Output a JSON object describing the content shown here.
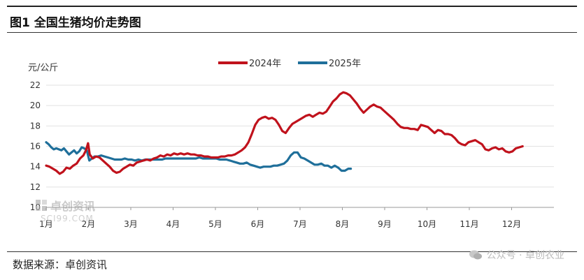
{
  "header": {
    "title": "图1 全国生猪均价走势图"
  },
  "footer": {
    "source": "数据来源：卓创资讯",
    "wechat": "公众号 · 卓创农业"
  },
  "watermark": {
    "brand": "卓创资讯",
    "sub": "SCI99.COM"
  },
  "chart_data": {
    "type": "line",
    "ylabel": "元/公斤",
    "ylim": [
      10,
      22
    ],
    "yticks": [
      10,
      12,
      14,
      16,
      18,
      20,
      22
    ],
    "xlim": [
      0,
      12
    ],
    "xticks": [
      "1月",
      "2月",
      "3月",
      "4月",
      "5月",
      "6月",
      "7月",
      "8月",
      "9月",
      "10月",
      "11月",
      "12月"
    ],
    "legend_position": "top-center",
    "colors": {
      "2024": "#c0121c",
      "2025": "#1f6f9a"
    },
    "series": [
      {
        "name": "2024年",
        "color": "#c0121c",
        "points": [
          [
            0.0,
            14.1
          ],
          [
            0.08,
            14.0
          ],
          [
            0.16,
            13.8
          ],
          [
            0.24,
            13.6
          ],
          [
            0.32,
            13.3
          ],
          [
            0.4,
            13.5
          ],
          [
            0.48,
            13.9
          ],
          [
            0.56,
            13.8
          ],
          [
            0.64,
            14.1
          ],
          [
            0.72,
            14.3
          ],
          [
            0.8,
            14.8
          ],
          [
            0.88,
            15.1
          ],
          [
            0.94,
            15.6
          ],
          [
            0.99,
            16.3
          ],
          [
            1.03,
            15.2
          ],
          [
            1.1,
            14.8
          ],
          [
            1.18,
            15.0
          ],
          [
            1.26,
            14.9
          ],
          [
            1.34,
            14.6
          ],
          [
            1.42,
            14.3
          ],
          [
            1.5,
            14.0
          ],
          [
            1.58,
            13.6
          ],
          [
            1.66,
            13.4
          ],
          [
            1.74,
            13.5
          ],
          [
            1.82,
            13.8
          ],
          [
            1.9,
            14.0
          ],
          [
            1.98,
            14.2
          ],
          [
            2.06,
            14.1
          ],
          [
            2.14,
            14.4
          ],
          [
            2.22,
            14.5
          ],
          [
            2.3,
            14.6
          ],
          [
            2.38,
            14.7
          ],
          [
            2.46,
            14.6
          ],
          [
            2.54,
            14.8
          ],
          [
            2.62,
            14.9
          ],
          [
            2.7,
            15.1
          ],
          [
            2.78,
            15.0
          ],
          [
            2.86,
            15.2
          ],
          [
            2.94,
            15.1
          ],
          [
            3.02,
            15.3
          ],
          [
            3.1,
            15.2
          ],
          [
            3.18,
            15.3
          ],
          [
            3.26,
            15.2
          ],
          [
            3.34,
            15.3
          ],
          [
            3.42,
            15.2
          ],
          [
            3.5,
            15.2
          ],
          [
            3.58,
            15.1
          ],
          [
            3.66,
            15.1
          ],
          [
            3.74,
            15.0
          ],
          [
            3.82,
            15.0
          ],
          [
            3.9,
            14.9
          ],
          [
            3.98,
            14.9
          ],
          [
            4.06,
            14.9
          ],
          [
            4.14,
            15.0
          ],
          [
            4.22,
            15.0
          ],
          [
            4.3,
            15.1
          ],
          [
            4.38,
            15.1
          ],
          [
            4.46,
            15.2
          ],
          [
            4.54,
            15.4
          ],
          [
            4.62,
            15.6
          ],
          [
            4.7,
            15.9
          ],
          [
            4.78,
            16.4
          ],
          [
            4.86,
            17.2
          ],
          [
            4.94,
            18.1
          ],
          [
            5.02,
            18.6
          ],
          [
            5.1,
            18.8
          ],
          [
            5.18,
            18.9
          ],
          [
            5.26,
            18.7
          ],
          [
            5.34,
            18.8
          ],
          [
            5.42,
            18.6
          ],
          [
            5.5,
            18.1
          ],
          [
            5.58,
            17.5
          ],
          [
            5.66,
            17.3
          ],
          [
            5.74,
            17.8
          ],
          [
            5.82,
            18.2
          ],
          [
            5.9,
            18.4
          ],
          [
            5.98,
            18.6
          ],
          [
            6.06,
            18.8
          ],
          [
            6.14,
            19.0
          ],
          [
            6.22,
            19.1
          ],
          [
            6.3,
            18.9
          ],
          [
            6.38,
            19.1
          ],
          [
            6.46,
            19.3
          ],
          [
            6.54,
            19.2
          ],
          [
            6.62,
            19.4
          ],
          [
            6.7,
            19.9
          ],
          [
            6.78,
            20.4
          ],
          [
            6.86,
            20.7
          ],
          [
            6.94,
            21.1
          ],
          [
            7.02,
            21.3
          ],
          [
            7.1,
            21.2
          ],
          [
            7.18,
            21.0
          ],
          [
            7.26,
            20.6
          ],
          [
            7.34,
            20.2
          ],
          [
            7.42,
            19.7
          ],
          [
            7.5,
            19.3
          ],
          [
            7.58,
            19.6
          ],
          [
            7.66,
            19.9
          ],
          [
            7.74,
            20.1
          ],
          [
            7.82,
            19.9
          ],
          [
            7.9,
            19.8
          ],
          [
            7.98,
            19.5
          ],
          [
            8.06,
            19.2
          ],
          [
            8.14,
            18.9
          ],
          [
            8.22,
            18.6
          ],
          [
            8.3,
            18.2
          ],
          [
            8.38,
            17.9
          ],
          [
            8.46,
            17.8
          ],
          [
            8.54,
            17.8
          ],
          [
            8.62,
            17.7
          ],
          [
            8.7,
            17.7
          ],
          [
            8.78,
            17.6
          ],
          [
            8.86,
            18.1
          ],
          [
            8.94,
            18.0
          ],
          [
            9.02,
            17.9
          ],
          [
            9.1,
            17.6
          ],
          [
            9.18,
            17.3
          ],
          [
            9.26,
            17.6
          ],
          [
            9.34,
            17.5
          ],
          [
            9.42,
            17.2
          ],
          [
            9.5,
            17.2
          ],
          [
            9.58,
            17.1
          ],
          [
            9.66,
            16.8
          ],
          [
            9.74,
            16.4
          ],
          [
            9.82,
            16.2
          ],
          [
            9.9,
            16.1
          ],
          [
            9.98,
            16.4
          ],
          [
            10.06,
            16.5
          ],
          [
            10.14,
            16.6
          ],
          [
            10.22,
            16.4
          ],
          [
            10.3,
            16.2
          ],
          [
            10.38,
            15.7
          ],
          [
            10.46,
            15.6
          ],
          [
            10.54,
            15.8
          ],
          [
            10.62,
            15.9
          ],
          [
            10.7,
            15.7
          ],
          [
            10.78,
            15.8
          ],
          [
            10.86,
            15.5
          ],
          [
            10.94,
            15.4
          ],
          [
            11.02,
            15.5
          ],
          [
            11.1,
            15.8
          ],
          [
            11.18,
            15.9
          ],
          [
            11.26,
            16.0
          ]
        ]
      },
      {
        "name": "2025年",
        "color": "#1f6f9a",
        "points": [
          [
            0.0,
            16.4
          ],
          [
            0.06,
            16.2
          ],
          [
            0.12,
            15.9
          ],
          [
            0.18,
            15.7
          ],
          [
            0.24,
            15.8
          ],
          [
            0.3,
            15.7
          ],
          [
            0.36,
            15.6
          ],
          [
            0.42,
            15.8
          ],
          [
            0.48,
            15.5
          ],
          [
            0.54,
            15.2
          ],
          [
            0.6,
            15.4
          ],
          [
            0.66,
            15.6
          ],
          [
            0.72,
            15.3
          ],
          [
            0.78,
            15.5
          ],
          [
            0.84,
            15.9
          ],
          [
            0.9,
            15.8
          ],
          [
            0.96,
            15.6
          ],
          [
            1.02,
            14.6
          ],
          [
            1.08,
            14.8
          ],
          [
            1.14,
            15.0
          ],
          [
            1.22,
            15.0
          ],
          [
            1.3,
            15.1
          ],
          [
            1.38,
            15.0
          ],
          [
            1.46,
            14.9
          ],
          [
            1.54,
            14.8
          ],
          [
            1.62,
            14.7
          ],
          [
            1.7,
            14.7
          ],
          [
            1.78,
            14.7
          ],
          [
            1.86,
            14.8
          ],
          [
            1.94,
            14.7
          ],
          [
            2.02,
            14.7
          ],
          [
            2.1,
            14.6
          ],
          [
            2.18,
            14.7
          ],
          [
            2.26,
            14.6
          ],
          [
            2.34,
            14.7
          ],
          [
            2.42,
            14.7
          ],
          [
            2.5,
            14.7
          ],
          [
            2.58,
            14.7
          ],
          [
            2.66,
            14.7
          ],
          [
            2.74,
            14.7
          ],
          [
            2.82,
            14.8
          ],
          [
            2.9,
            14.8
          ],
          [
            2.98,
            14.8
          ],
          [
            3.06,
            14.8
          ],
          [
            3.14,
            14.8
          ],
          [
            3.22,
            14.8
          ],
          [
            3.3,
            14.8
          ],
          [
            3.38,
            14.8
          ],
          [
            3.46,
            14.8
          ],
          [
            3.54,
            14.8
          ],
          [
            3.62,
            14.9
          ],
          [
            3.7,
            14.8
          ],
          [
            3.78,
            14.8
          ],
          [
            3.86,
            14.8
          ],
          [
            3.94,
            14.8
          ],
          [
            4.02,
            14.8
          ],
          [
            4.1,
            14.7
          ],
          [
            4.18,
            14.7
          ],
          [
            4.26,
            14.7
          ],
          [
            4.34,
            14.6
          ],
          [
            4.42,
            14.5
          ],
          [
            4.5,
            14.4
          ],
          [
            4.58,
            14.3
          ],
          [
            4.66,
            14.3
          ],
          [
            4.74,
            14.4
          ],
          [
            4.82,
            14.2
          ],
          [
            4.9,
            14.1
          ],
          [
            4.98,
            14.0
          ],
          [
            5.06,
            13.9
          ],
          [
            5.14,
            14.0
          ],
          [
            5.22,
            14.0
          ],
          [
            5.3,
            14.0
          ],
          [
            5.38,
            14.1
          ],
          [
            5.46,
            14.1
          ],
          [
            5.54,
            14.2
          ],
          [
            5.62,
            14.3
          ],
          [
            5.7,
            14.6
          ],
          [
            5.78,
            15.1
          ],
          [
            5.86,
            15.4
          ],
          [
            5.94,
            15.4
          ],
          [
            6.02,
            14.9
          ],
          [
            6.1,
            14.8
          ],
          [
            6.18,
            14.6
          ],
          [
            6.26,
            14.4
          ],
          [
            6.34,
            14.2
          ],
          [
            6.42,
            14.2
          ],
          [
            6.5,
            14.3
          ],
          [
            6.58,
            14.1
          ],
          [
            6.66,
            14.1
          ],
          [
            6.74,
            13.9
          ],
          [
            6.82,
            14.1
          ],
          [
            6.9,
            13.9
          ],
          [
            6.98,
            13.6
          ],
          [
            7.06,
            13.6
          ],
          [
            7.14,
            13.8
          ],
          [
            7.2,
            13.8
          ]
        ]
      }
    ]
  }
}
